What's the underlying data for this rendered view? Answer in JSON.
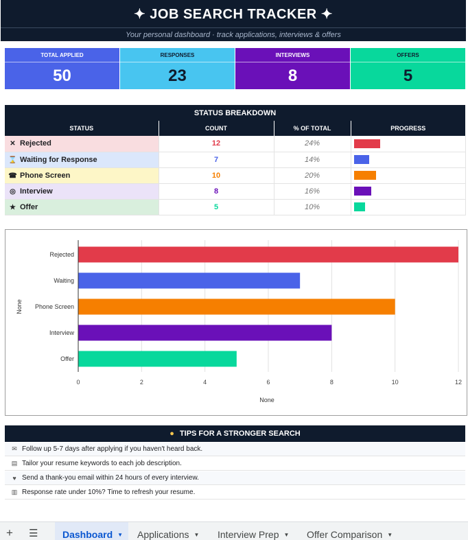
{
  "header": {
    "title": "✦  JOB SEARCH TRACKER  ✦",
    "subtitle": "Your personal dashboard · track applications, interviews & offers"
  },
  "kpis": [
    {
      "label": "TOTAL APPLIED",
      "value": "50",
      "bg": "#4a63e8",
      "fg": "#ffffff"
    },
    {
      "label": "RESPONSES",
      "value": "23",
      "bg": "#48c5f0",
      "fg": "#0f1b2d"
    },
    {
      "label": "INTERVIEWS",
      "value": "8",
      "bg": "#6a10b8",
      "fg": "#ffffff"
    },
    {
      "label": "OFFERS",
      "value": "5",
      "bg": "#08d89c",
      "fg": "#0f1b2d"
    }
  ],
  "status_breakdown": {
    "title": "STATUS BREAKDOWN",
    "columns": [
      "STATUS",
      "COUNT",
      "% OF TOTAL",
      "PROGRESS"
    ],
    "rows": [
      {
        "icon": "x-icon",
        "glyph": "✕",
        "label": "Rejected",
        "count": "12",
        "pct": "24%",
        "progress": 0.24,
        "color": "#e23b4a",
        "bg": "#f9dde0"
      },
      {
        "icon": "hourglass-icon",
        "glyph": "⌛",
        "label": "Waiting for Response",
        "count": "7",
        "pct": "14%",
        "progress": 0.14,
        "color": "#4a63e8",
        "bg": "#dbe7fb"
      },
      {
        "icon": "phone-icon",
        "glyph": "☎",
        "label": "Phone Screen",
        "count": "10",
        "pct": "20%",
        "progress": 0.2,
        "color": "#f67f00",
        "bg": "#fdf6c7"
      },
      {
        "icon": "target-icon",
        "glyph": "◎",
        "label": "Interview",
        "count": "8",
        "pct": "16%",
        "progress": 0.16,
        "color": "#6a10b8",
        "bg": "#ebe3f8"
      },
      {
        "icon": "trophy-icon",
        "glyph": "★",
        "label": "Offer",
        "count": "5",
        "pct": "10%",
        "progress": 0.1,
        "color": "#08d89c",
        "bg": "#d9efdd"
      }
    ]
  },
  "chart_data": {
    "type": "bar",
    "orientation": "horizontal",
    "categories": [
      "Rejected",
      "Waiting",
      "Phone Screen",
      "Interview",
      "Offer"
    ],
    "values": [
      12,
      7,
      10,
      8,
      5
    ],
    "colors": [
      "#e23b4a",
      "#4a63e8",
      "#f67f00",
      "#6a10b8",
      "#08d89c"
    ],
    "xlabel": "None",
    "ylabel": "None",
    "xlim": [
      0,
      12
    ],
    "xticks": [
      0,
      2,
      4,
      6,
      8,
      10,
      12
    ],
    "grid": true
  },
  "tips": {
    "title": "TIPS FOR A STRONGER SEARCH",
    "title_icon": "lightbulb-icon",
    "items": [
      {
        "icon": "envelope-icon",
        "glyph": "✉",
        "text": "Follow up 5-7 days after applying if you haven't heard back."
      },
      {
        "icon": "document-icon",
        "glyph": "▤",
        "text": "Tailor your resume keywords to each job description."
      },
      {
        "icon": "handshake-icon",
        "glyph": "♥",
        "text": "Send a thank-you email within 24 hours of every interview."
      },
      {
        "icon": "bar-chart-icon",
        "glyph": "▥",
        "text": "Response rate under 10%? Time to refresh your resume."
      }
    ]
  },
  "sheet_tabs": {
    "add_icon": "plus-icon",
    "menu_icon": "hamburger-menu-icon",
    "tabs": [
      "Dashboard",
      "Applications",
      "Interview Prep",
      "Offer Comparison"
    ],
    "active": "Dashboard"
  }
}
